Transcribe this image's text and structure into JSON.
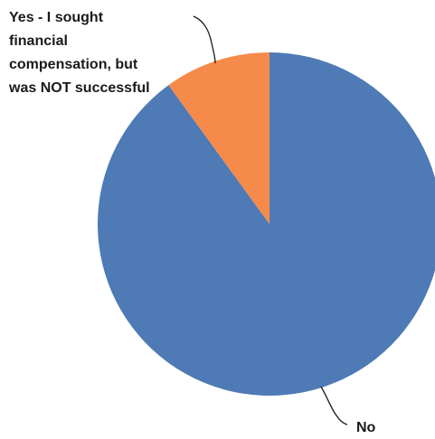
{
  "chart_data": {
    "type": "pie",
    "series": [
      {
        "slices": [
          {
            "label": "No",
            "value": 90,
            "color": "#4E7AB5"
          },
          {
            "label": "Yes - I sought financial compensation, but was NOT successful",
            "value": 10,
            "color": "#F58A4B"
          }
        ]
      }
    ],
    "start": "top",
    "direction": "clockwise"
  },
  "labels": {
    "no": "No",
    "yes_lines": [
      "Yes - I sought",
      "financial",
      "compensation, but",
      "was NOT successful"
    ]
  }
}
